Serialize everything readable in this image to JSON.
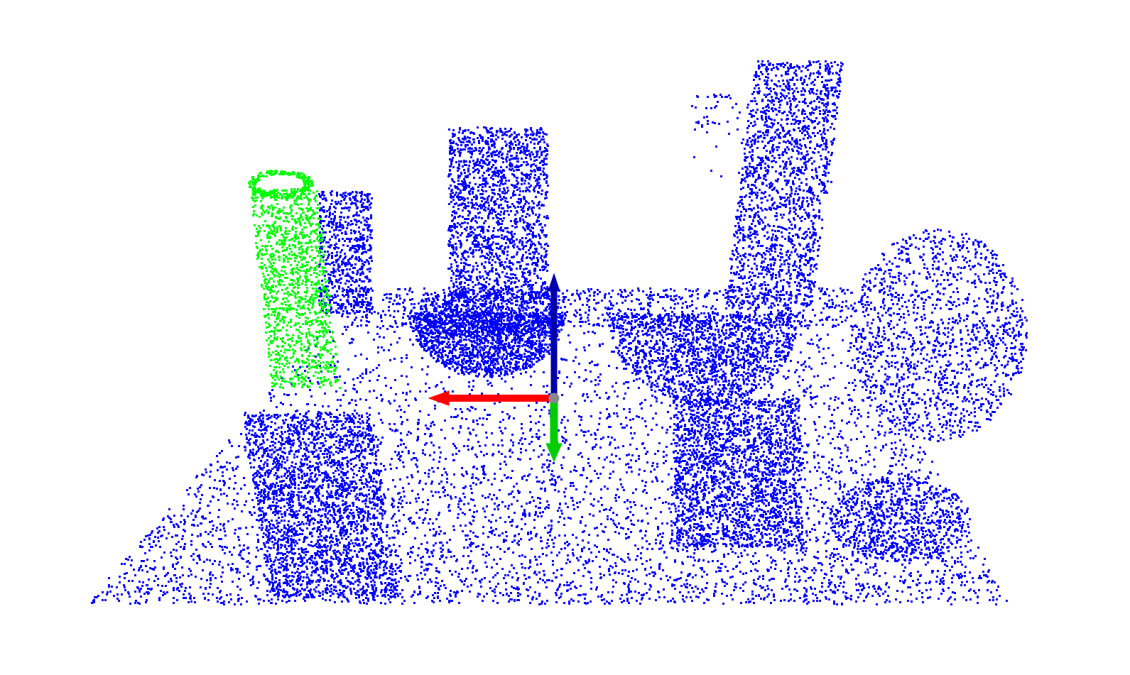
{
  "scene": {
    "background": "#ffffff",
    "point_color": "#0000ff",
    "highlight_color": "#00ff00",
    "axis_colors": {
      "x": "#ff0000",
      "y": "#00cc00",
      "z": "#0000aa",
      "origin": "#888888"
    },
    "objects": [
      "table-surface",
      "highlighted-can",
      "box-left",
      "box-center",
      "bowl-center",
      "spray-bottle",
      "bowl-right",
      "mug-right",
      "cylinder-left-front",
      "cylinder-right-front"
    ],
    "icons": [
      "coordinate-axes-icon"
    ]
  }
}
